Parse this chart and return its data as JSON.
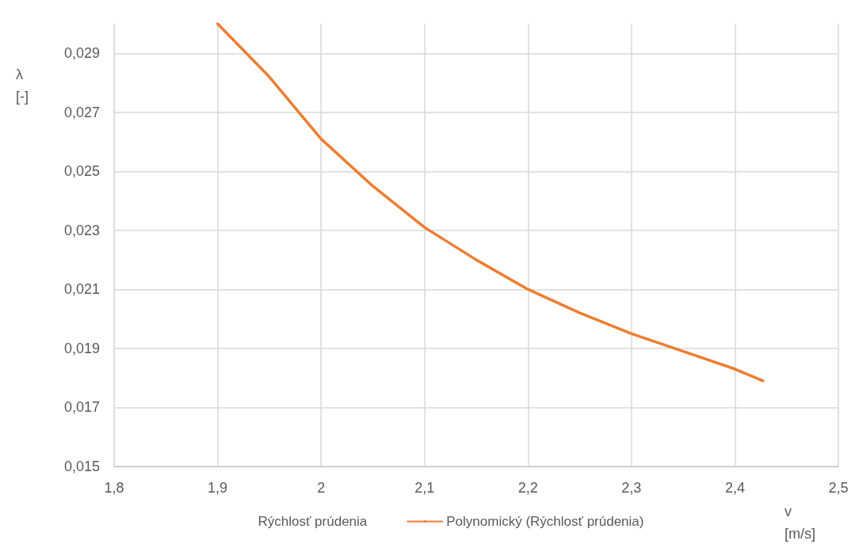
{
  "chart_data": {
    "type": "line",
    "xlabel": "v\n[m/s]",
    "ylabel": "λ\n[-]",
    "xlim": [
      1.8,
      2.5
    ],
    "xticks": [
      {
        "value": 1.8,
        "label": "1,8"
      },
      {
        "value": 1.9,
        "label": "1,9"
      },
      2,
      {
        "value": 2.1,
        "label": "2,1"
      },
      {
        "value": 2.2,
        "label": "2,2"
      },
      {
        "value": 2.3,
        "label": "2,3"
      },
      {
        "value": 2.4,
        "label": "2,4"
      },
      {
        "value": 2.5,
        "label": "2,5"
      }
    ],
    "ylim": [
      0.015,
      0.03
    ],
    "yticks": [
      {
        "value": 0.015,
        "label": "0,015"
      },
      {
        "value": 0.017,
        "label": "0,017"
      },
      {
        "value": 0.019,
        "label": "0,019"
      },
      {
        "value": 0.021,
        "label": "0,021"
      },
      {
        "value": 0.023,
        "label": "0,023"
      },
      {
        "value": 0.025,
        "label": "0,025"
      },
      {
        "value": 0.027,
        "label": "0,027"
      },
      {
        "value": 0.029,
        "label": "0,029"
      }
    ],
    "series": [
      {
        "name": "Rýchlosť prúdenia",
        "type": "scatter"
      },
      {
        "name": "Polynomický (Rýchlosť prúdenia)",
        "color": "#ed7d31",
        "x": [
          1.9,
          1.95,
          2.0,
          2.05,
          2.1,
          2.15,
          2.2,
          2.25,
          2.3,
          2.35,
          2.4,
          2.427
        ],
        "values": [
          0.03,
          0.0282,
          0.0261,
          0.0245,
          0.0231,
          0.022,
          0.021,
          0.0202,
          0.0195,
          0.0189,
          0.0183,
          0.0179
        ]
      }
    ],
    "grid": true,
    "legend": "bottom",
    "marker": "none",
    "line_style": "solid"
  }
}
